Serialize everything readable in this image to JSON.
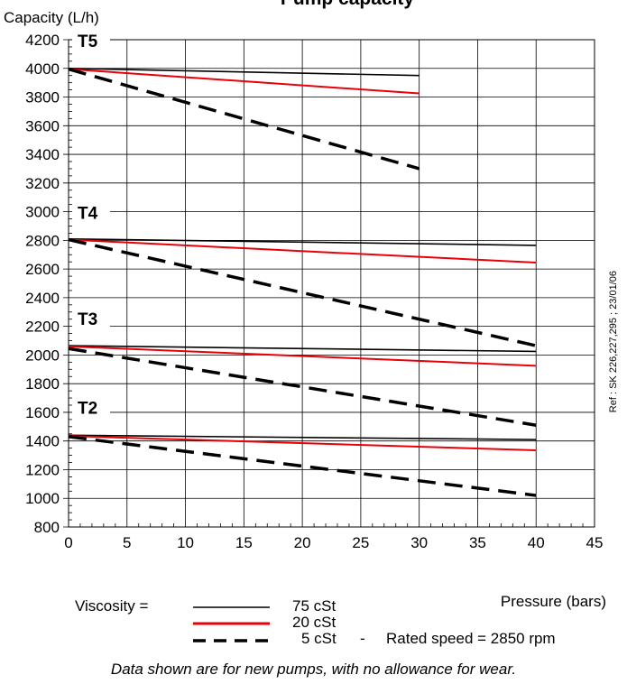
{
  "chart_data": {
    "type": "line",
    "title": "Pump capacity",
    "ylabel": "Capacity (L/h)",
    "xlabel": "Pressure (bars)",
    "xlim": [
      0,
      45
    ],
    "ylim": [
      800,
      4200
    ],
    "xticks": [
      0,
      5,
      10,
      15,
      20,
      25,
      30,
      35,
      40,
      45
    ],
    "yticks": [
      800,
      1000,
      1200,
      1400,
      1600,
      1800,
      2000,
      2200,
      2400,
      2600,
      2800,
      3000,
      3200,
      3400,
      3600,
      3800,
      4000,
      4200
    ],
    "grid": true,
    "groups": [
      {
        "name": "T5",
        "label_y": 4150,
        "series": [
          {
            "viscosity": "75 cSt",
            "x": [
              0,
              30
            ],
            "y": [
              4000,
              3950
            ]
          },
          {
            "viscosity": "20 cSt",
            "x": [
              0,
              30
            ],
            "y": [
              3995,
              3825
            ]
          },
          {
            "viscosity": "5 cSt",
            "x": [
              0,
              30
            ],
            "y": [
              3995,
              3300
            ]
          }
        ]
      },
      {
        "name": "T4",
        "label_y": 2950,
        "series": [
          {
            "viscosity": "75 cSt",
            "x": [
              0,
              40
            ],
            "y": [
              2810,
              2765
            ]
          },
          {
            "viscosity": "20 cSt",
            "x": [
              0,
              40
            ],
            "y": [
              2805,
              2645
            ]
          },
          {
            "viscosity": "5 cSt",
            "x": [
              0,
              40
            ],
            "y": [
              2805,
              2065
            ]
          }
        ]
      },
      {
        "name": "T3",
        "label_y": 2210,
        "series": [
          {
            "viscosity": "75 cSt",
            "x": [
              0,
              40
            ],
            "y": [
              2065,
              2025
            ]
          },
          {
            "viscosity": "20 cSt",
            "x": [
              0,
              40
            ],
            "y": [
              2060,
              1925
            ]
          },
          {
            "viscosity": "5 cSt",
            "x": [
              0,
              40
            ],
            "y": [
              2045,
              1510
            ]
          }
        ]
      },
      {
        "name": "T2",
        "label_y": 1590,
        "series": [
          {
            "viscosity": "75 cSt",
            "x": [
              0,
              40
            ],
            "y": [
              1440,
              1410
            ]
          },
          {
            "viscosity": "20 cSt",
            "x": [
              0,
              40
            ],
            "y": [
              1435,
              1335
            ]
          },
          {
            "viscosity": "5 cSt",
            "x": [
              0,
              40
            ],
            "y": [
              1430,
              1020
            ]
          }
        ]
      }
    ],
    "styles": {
      "75 cSt": {
        "color": "#000000",
        "dash": "solid"
      },
      "20 cSt": {
        "color": "#e8000b",
        "dash": "solid"
      },
      "5 cSt": {
        "color": "#000000",
        "dash": "dashed"
      }
    },
    "legend": {
      "prefix": "Viscosity  =",
      "entries": [
        "75 cSt",
        "20 cSt",
        "5 cSt"
      ],
      "separator": "-",
      "rated_speed": "Rated speed = 2850 rpm"
    },
    "reference": "Ref : SK 226,227,295 ; 23/01/06",
    "footnote": "Data shown are for new pumps, with no allowance for wear."
  }
}
